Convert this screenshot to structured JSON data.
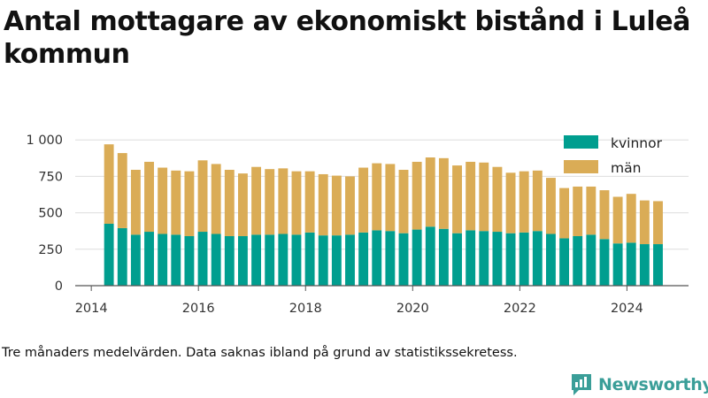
{
  "title": "Antal mottagare av ekonomiskt bistånd i Luleå kommun",
  "caption": "Tre månaders medelvärden. Data saknas ibland på grund av statistikssekretess.",
  "brand": {
    "name": "Newsworthy",
    "logo_icon": "newsworthy-logo-icon"
  },
  "colors": {
    "kvinnor": "#009e8f",
    "man": "#daac56",
    "grid": "#dddddd",
    "axis": "#555555"
  },
  "chart_data": {
    "type": "bar",
    "stacked": true,
    "legend_position": "top-right",
    "grid": true,
    "x_ticks": [
      "2014",
      "2016",
      "2018",
      "2020",
      "2022",
      "2024"
    ],
    "y_ticks": [
      "0",
      "250",
      "500",
      "750",
      "1 000"
    ],
    "ylim": [
      0,
      1050
    ],
    "xlim": [
      2013.7,
      2025.15
    ],
    "x": [
      2014.33,
      2014.58,
      2014.83,
      2015.08,
      2015.33,
      2015.58,
      2015.83,
      2016.08,
      2016.33,
      2016.58,
      2016.83,
      2017.08,
      2017.33,
      2017.58,
      2017.83,
      2018.08,
      2018.33,
      2018.58,
      2018.83,
      2019.08,
      2019.33,
      2019.58,
      2019.83,
      2020.08,
      2020.33,
      2020.58,
      2020.83,
      2021.08,
      2021.33,
      2021.58,
      2021.83,
      2022.08,
      2022.33,
      2022.58,
      2022.83,
      2023.08,
      2023.33,
      2023.58,
      2023.83,
      2024.08,
      2024.33,
      2024.58
    ],
    "series": [
      {
        "name": "kvinnor",
        "values": [
          425,
          395,
          350,
          370,
          355,
          350,
          340,
          370,
          355,
          340,
          340,
          350,
          350,
          355,
          350,
          365,
          345,
          345,
          350,
          365,
          380,
          375,
          360,
          385,
          405,
          390,
          360,
          380,
          375,
          370,
          360,
          365,
          375,
          355,
          325,
          340,
          350,
          320,
          290,
          295,
          285,
          285
        ]
      },
      {
        "name": "män",
        "values": [
          545,
          515,
          445,
          480,
          455,
          440,
          445,
          490,
          480,
          455,
          430,
          465,
          450,
          450,
          435,
          420,
          420,
          410,
          400,
          445,
          460,
          460,
          435,
          465,
          475,
          485,
          465,
          470,
          470,
          445,
          415,
          420,
          415,
          385,
          345,
          340,
          330,
          335,
          320,
          335,
          300,
          295
        ]
      }
    ]
  }
}
